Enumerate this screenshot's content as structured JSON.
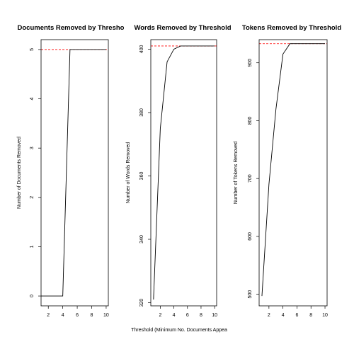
{
  "figure": {
    "xlabel": "Threshold (Minimum No. Documents Appea"
  },
  "chart_data": [
    {
      "type": "line",
      "title": "Documents Removed by Thresho",
      "xlabel": "",
      "ylabel": "Number of Documents Removed",
      "xlim": [
        1,
        10.3
      ],
      "ylim": [
        -0.2,
        5.2
      ],
      "x_ticks": [
        2,
        4,
        6,
        8,
        10
      ],
      "y_ticks": [
        0,
        1,
        2,
        3,
        4,
        5
      ],
      "reference_line": {
        "y": 5,
        "color": "#ff0000",
        "style": "dashed"
      },
      "series": [
        {
          "x": [
            1,
            2,
            3,
            4,
            5,
            6,
            7,
            8,
            9,
            10
          ],
          "y": [
            0,
            0,
            0,
            0,
            5,
            5,
            5,
            5,
            5,
            5
          ]
        }
      ]
    },
    {
      "type": "line",
      "title": "Words Removed by Threshold",
      "xlabel": "",
      "ylabel": "Number of Words Removed",
      "xlim": [
        0.6,
        10.3
      ],
      "ylim": [
        319,
        403
      ],
      "x_ticks": [
        2,
        4,
        6,
        8,
        10
      ],
      "y_ticks": [
        320,
        340,
        360,
        380,
        400
      ],
      "reference_line": {
        "y": 401,
        "color": "#ff0000",
        "style": "dashed"
      },
      "series": [
        {
          "x": [
            1,
            2,
            3,
            4,
            5,
            6,
            7,
            8,
            9,
            10
          ],
          "y": [
            321,
            375,
            396,
            400,
            401,
            401,
            401,
            401,
            401,
            401
          ]
        }
      ]
    },
    {
      "type": "line",
      "title": "Tokens Removed by Threshold",
      "xlabel": "",
      "ylabel": "Number of Tokens Removed",
      "xlim": [
        0.6,
        10.3
      ],
      "ylim": [
        480,
        940
      ],
      "x_ticks": [
        2,
        4,
        6,
        8,
        10
      ],
      "y_ticks": [
        500,
        600,
        700,
        800,
        900
      ],
      "reference_line": {
        "y": 933,
        "color": "#ff0000",
        "style": "dashed"
      },
      "series": [
        {
          "x": [
            1,
            2,
            3,
            4,
            5,
            6,
            7,
            8,
            9,
            10
          ],
          "y": [
            497,
            690,
            820,
            915,
            933,
            933,
            933,
            933,
            933,
            933
          ]
        }
      ]
    }
  ]
}
